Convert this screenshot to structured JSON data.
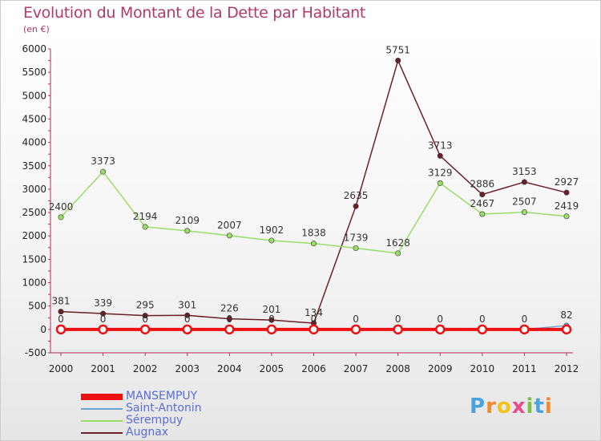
{
  "header": {
    "title": "Evolution du Montant de la Dette par Habitant",
    "unit": "(en €)"
  },
  "logo": {
    "text": "Proxiti"
  },
  "chart_data": {
    "type": "line",
    "title": "Evolution du Montant de la Dette par Habitant",
    "ylabel": "(en €)",
    "xlabel": "",
    "x": [
      "2000",
      "2001",
      "2002",
      "2003",
      "2004",
      "2005",
      "2006",
      "2007",
      "2008",
      "2009",
      "2010",
      "2011",
      "2012"
    ],
    "ylim": [
      -500,
      6000
    ],
    "yticks": [
      -500,
      0,
      500,
      1000,
      1500,
      2000,
      2500,
      3000,
      3500,
      4000,
      4500,
      5000,
      5500,
      6000
    ],
    "grid": false,
    "legend_position": "bottom-left",
    "series": [
      {
        "name": "MANSEMPUY",
        "color": "#ee1111",
        "values": [
          0,
          0,
          0,
          0,
          0,
          0,
          0,
          0,
          0,
          0,
          0,
          0,
          0
        ],
        "show_labels": false
      },
      {
        "name": "Saint-Antonin",
        "color": "#6aa5d2",
        "values": [
          0,
          0,
          0,
          0,
          0,
          0,
          0,
          0,
          0,
          0,
          0,
          0,
          82
        ],
        "show_labels": true
      },
      {
        "name": "Sérempuy",
        "color": "#99dd66",
        "values": [
          2400,
          3373,
          2194,
          2109,
          2007,
          1902,
          1838,
          1739,
          1628,
          3129,
          2467,
          2507,
          2419
        ],
        "show_labels": true
      },
      {
        "name": "Augnax",
        "color": "#6b1f2a",
        "values": [
          381,
          339,
          295,
          301,
          226,
          201,
          134,
          2635,
          5751,
          3713,
          2886,
          3153,
          2927
        ],
        "show_labels": true
      }
    ]
  }
}
